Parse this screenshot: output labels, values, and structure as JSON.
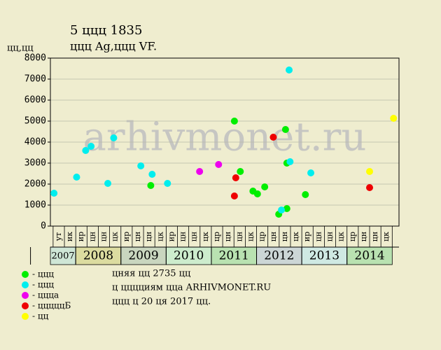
{
  "chart_data": {
    "type": "scatter",
    "title": "5 ццц 1835",
    "subtitle": "ццц Ag,ццц VF.",
    "y_label": "цц,цц",
    "watermark": "arhivmonet.ru",
    "xlim": [
      2007.44,
      2015.15
    ],
    "xticks": [
      2007,
      2008,
      2009,
      2010,
      2011,
      2012,
      2013,
      2014
    ],
    "year_colors": [
      "#cfe6d6",
      "#dcdca0",
      "#c9d6bf",
      "#cdeccd",
      "#b9e2b1",
      "#ccd6d6",
      "#cfe9e3",
      "#b9e2b1"
    ],
    "quarter_labels": [
      "ут",
      "ик",
      "ир",
      "цн",
      "цн",
      "цк",
      "ир",
      "цн",
      "цн",
      "цк",
      "ир",
      "цн",
      "цн",
      "цк",
      "цр",
      "цн",
      "цн",
      "цк",
      "цр",
      "цн",
      "цн",
      "цк",
      "ир",
      "цн",
      "цн",
      "цк",
      "цр",
      "цн",
      "цн",
      "цк"
    ],
    "ylim": [
      0,
      8000
    ],
    "yticks": [
      0,
      1000,
      2000,
      3000,
      4000,
      5000,
      6000,
      7000,
      8000
    ],
    "grid": true,
    "series": [
      {
        "name": "- ццц",
        "color": "#00ee00",
        "x": [
          2009.66,
          2011.51,
          2011.64,
          2011.92,
          2012.02,
          2012.18,
          2012.49,
          2012.64,
          2012.67,
          2012.67,
          2013.08
        ],
        "values": [
          1933,
          5000,
          2600,
          1667,
          1533,
          1867,
          567,
          4600,
          3000,
          833,
          1500
        ]
      },
      {
        "name": "- ццц",
        "color": "#00eeee",
        "x": [
          2007.52,
          2008.02,
          2008.22,
          2008.34,
          2008.71,
          2008.84,
          2009.44,
          2009.69,
          2010.03,
          2012.55,
          2012.72,
          2012.74,
          2013.2
        ],
        "values": [
          1567,
          2333,
          3600,
          3800,
          2033,
          4200,
          2867,
          2467,
          2033,
          767,
          7433,
          3067,
          2533
        ]
      },
      {
        "name": "- ццца",
        "color": "#ee00ee",
        "x": [
          2010.74,
          2011.16
        ],
        "values": [
          2600,
          2933
        ]
      },
      {
        "name": "- цццццБ",
        "color": "#ee0000",
        "x": [
          2011.51,
          2011.54,
          2012.37,
          2014.5
        ],
        "values": [
          1433,
          2300,
          4233,
          1833
        ]
      },
      {
        "name": "- цц",
        "color": "#ffff00",
        "x": [
          2014.5,
          2015.03
        ],
        "values": [
          2600,
          5133
        ]
      }
    ],
    "notes": [
      "цняя цц 2735 цц",
      "ц цццциям ццa ARHIVMONET.RU",
      "ццц ц 20 ця 2017 цц."
    ]
  }
}
